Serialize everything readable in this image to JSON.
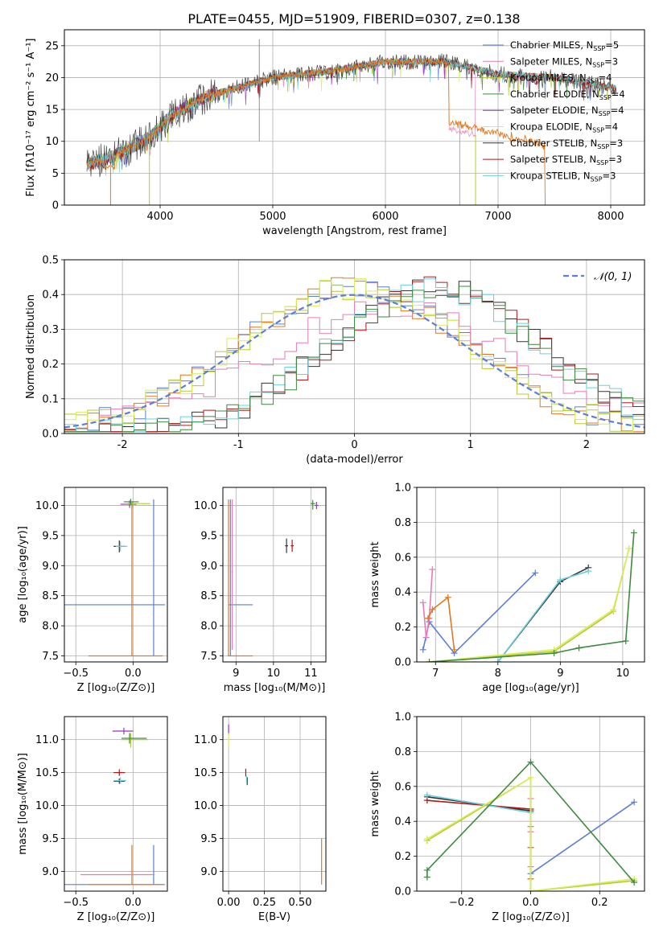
{
  "title": "PLATE=0455, MJD=51909, FIBERID=0307, z=0.138",
  "colors": {
    "Chabrier MILES": "#5b7fd6",
    "Salpeter MILES": "#e67bb8",
    "Kroupa MILES": "#b7c832",
    "Chabrier ELODIE": "#3e8a3e",
    "Salpeter ELODIE": "#9b30c8",
    "Kroupa ELODIE": "#d8ee58",
    "Chabrier STELIB": "#333333",
    "Salpeter STELIB": "#b01818",
    "Kroupa STELIB": "#6cd0dc",
    "orange": "#e07820"
  },
  "chart_data": [
    {
      "id": "spectrum",
      "type": "line",
      "xlabel": "wavelength [Angstrom, rest frame]",
      "ylabel": "Flux [fλ10⁻¹⁷ erg cm⁻² s⁻¹ A⁻¹]",
      "xlim": [
        3150,
        8300
      ],
      "ylim": [
        0,
        27.5
      ],
      "xticks": [
        4000,
        5000,
        6000,
        7000,
        8000
      ],
      "yticks": [
        0,
        5,
        10,
        15,
        20,
        25
      ],
      "legend_position": "top-right",
      "legend": [
        {
          "label": "Chabrier MILES, N",
          "sub": "SSP",
          "n": "=5",
          "color": "#5b7fd6"
        },
        {
          "label": "Salpeter MILES, N",
          "sub": "SSP",
          "n": "=3",
          "color": "#e67bb8"
        },
        {
          "label": "Kroupa MILES, N",
          "sub": "SSP",
          "n": "=4",
          "color": "#b7c832"
        },
        {
          "label": "Chabrier ELODIE, N",
          "sub": "SSP",
          "n": "=4",
          "color": "#3e8a3e"
        },
        {
          "label": "Salpeter ELODIE, N",
          "sub": "SSP",
          "n": "=4",
          "color": "#9b30c8"
        },
        {
          "label": "Kroupa ELODIE, N",
          "sub": "SSP",
          "n": "=4",
          "color": "#d8ee58"
        },
        {
          "label": "Chabrier STELIB, N",
          "sub": "SSP",
          "n": "=3",
          "color": "#333333"
        },
        {
          "label": "Salpeter STELIB, N",
          "sub": "SSP",
          "n": "=3",
          "color": "#b01818"
        },
        {
          "label": "Kroupa STELIB, N",
          "sub": "SSP",
          "n": "=3",
          "color": "#6cd0dc"
        }
      ],
      "continuum": [
        [
          3350,
          6.3
        ],
        [
          3600,
          7.8
        ],
        [
          3900,
          10.5
        ],
        [
          4100,
          14
        ],
        [
          4400,
          17
        ],
        [
          4700,
          18.5
        ],
        [
          5000,
          20
        ],
        [
          5500,
          21
        ],
        [
          6000,
          22.5
        ],
        [
          6400,
          22.5
        ],
        [
          6550,
          22.5
        ],
        [
          7000,
          20.5
        ],
        [
          7500,
          20
        ],
        [
          8000,
          18.5
        ],
        [
          8050,
          18.3
        ]
      ],
      "drops": [
        {
          "start": 6560,
          "end": 7420,
          "levels": [
            [
              6560,
              13
            ],
            [
              6800,
              12.5
            ],
            [
              7000,
              11
            ],
            [
              7200,
              9.5
            ],
            [
              7420,
              0
            ]
          ],
          "color": "#e07820"
        },
        {
          "start": 6560,
          "end": 6800,
          "levels": [
            [
              6560,
              12
            ],
            [
              6800,
              11
            ]
          ],
          "color": "#e67bb8"
        },
        {
          "start": 3600,
          "end": 3600,
          "levels": [
            [
              3500,
              0
            ],
            [
              3600,
              6
            ]
          ],
          "color": "#e07820"
        },
        {
          "start": 3900,
          "end": 3920,
          "levels": [
            [
              3890,
              0
            ],
            [
              3920,
              12
            ]
          ],
          "color": "#b7c832"
        }
      ]
    },
    {
      "id": "residuals",
      "type": "histogram",
      "xlabel": "(data-model)/error",
      "ylabel": "Normed distribution",
      "xlim": [
        -2.5,
        2.5
      ],
      "ylim": [
        0,
        0.5
      ],
      "xticks": [
        -2,
        -1,
        0,
        1,
        2
      ],
      "yticks": [
        0.0,
        0.1,
        0.2,
        0.3,
        0.4,
        0.5
      ],
      "legend_position": "top-right",
      "gauss_label": "𝒩(0, 1)",
      "gauss_color": "#5b7fd6",
      "bin_width": 0.1,
      "bin_start": -2.5,
      "groups": [
        {
          "colors": [
            "#5b7fd6",
            "#e07820",
            "#b7c832",
            "#d8ee58"
          ],
          "center": 0.0,
          "sigma": 1.0,
          "peak": 0.42
        },
        {
          "colors": [
            "#e67bb8"
          ],
          "center": 0.3,
          "sigma": 1.1,
          "peak": 0.36
        },
        {
          "colors": [
            "#333333",
            "#b01818",
            "#6cd0dc",
            "#3e8a3e"
          ],
          "center": 0.7,
          "sigma": 0.9,
          "peak": 0.42
        }
      ]
    },
    {
      "id": "age_vs_Z",
      "type": "errorbar",
      "xlabel": "Z [log₁₀(Z/Z⊙)]",
      "ylabel": "age  [log₁₀(age/yr)]",
      "xlim": [
        -0.6,
        0.3
      ],
      "ylim": [
        7.4,
        10.3
      ],
      "xticks": [
        -0.5,
        0.0
      ],
      "xticklabels": [
        "−0.5",
        "0.0"
      ],
      "yticks": [
        7.5,
        8.0,
        8.5,
        9.0,
        9.5,
        10.0
      ],
      "points": [
        {
          "x": 0.18,
          "y": 8.35,
          "xerr": [
            0.78,
            0.1
          ],
          "yerr": [
            0.85,
            1.75
          ],
          "color": "#5b7fd6"
        },
        {
          "x": -0.01,
          "y": 7.5,
          "xerr": [
            0.38,
            0.27
          ],
          "yerr": [
            0.0,
            2.55
          ],
          "color": "#e07820"
        },
        {
          "x": -0.12,
          "y": 9.32,
          "xerr": [
            0.05,
            0.05
          ],
          "yerr": [
            0.1,
            0.1
          ],
          "color": "#333333"
        },
        {
          "x": -0.11,
          "y": 9.32,
          "xerr": [
            0.04,
            0.06
          ],
          "yerr": [
            0.08,
            0.08
          ],
          "color": "#6cd0dc"
        },
        {
          "x": -0.03,
          "y": 10.02,
          "xerr": [
            0.08,
            0.06
          ],
          "yerr": [
            0.06,
            0.06
          ],
          "color": "#9b30c8"
        },
        {
          "x": 0.0,
          "y": 10.03,
          "xerr": [
            0.05,
            0.15
          ],
          "yerr": [
            0.08,
            0.04
          ],
          "color": "#b7c832"
        },
        {
          "x": -0.02,
          "y": 10.06,
          "xerr": [
            0.06,
            0.07
          ],
          "yerr": [
            0.05,
            0.05
          ],
          "color": "#3e8a3e"
        }
      ]
    },
    {
      "id": "age_vs_mass",
      "type": "errorbar",
      "xlabel": "mass [log₁₀(M/M⊙)]",
      "ylabel": "",
      "xlim": [
        8.65,
        11.4
      ],
      "ylim": [
        7.4,
        10.3
      ],
      "xticks": [
        9,
        10,
        11
      ],
      "yticks": [
        7.5,
        8.0,
        8.5,
        9.0,
        9.5,
        10.0
      ],
      "points": [
        {
          "x": 8.85,
          "y": 8.35,
          "xerr": [
            0.05,
            0.6
          ],
          "yerr": [
            0.85,
            1.75
          ],
          "color": "#5b7fd6"
        },
        {
          "x": 8.8,
          "y": 7.5,
          "xerr": [
            0.02,
            0.65
          ],
          "yerr": [
            0.0,
            2.6
          ],
          "color": "#e07820"
        },
        {
          "x": 8.9,
          "y": 8.9,
          "xerr": [
            0.02,
            0.02
          ],
          "yerr": [
            1.3,
            1.2
          ],
          "color": "#e67bb8"
        },
        {
          "x": 10.35,
          "y": 9.33,
          "xerr": [
            0.04,
            0.04
          ],
          "yerr": [
            0.12,
            0.12
          ],
          "color": "#333333"
        },
        {
          "x": 10.5,
          "y": 9.33,
          "xerr": [
            0.04,
            0.04
          ],
          "yerr": [
            0.1,
            0.1
          ],
          "color": "#b01818"
        },
        {
          "x": 11.15,
          "y": 10.0,
          "xerr": [
            0.05,
            0.05
          ],
          "yerr": [
            0.06,
            0.06
          ],
          "color": "#9b30c8"
        },
        {
          "x": 11.05,
          "y": 10.03,
          "xerr": [
            0.06,
            0.06
          ],
          "yerr": [
            0.1,
            0.06
          ],
          "color": "#3e8a3e"
        }
      ]
    },
    {
      "id": "mass_weight_vs_age",
      "type": "line",
      "xlabel": "age  [log₁₀(age/yr)]",
      "ylabel": "mass weight",
      "xlim": [
        6.7,
        10.35
      ],
      "ylim": [
        0,
        1.0
      ],
      "xticks": [
        7,
        8,
        9,
        10
      ],
      "yticks": [
        0.0,
        0.2,
        0.4,
        0.6,
        0.8,
        1.0
      ],
      "series": [
        {
          "color": "#5b7fd6",
          "x": [
            6.8,
            6.9,
            7.3,
            8.6
          ],
          "y": [
            0.07,
            0.23,
            0.05,
            0.51
          ]
        },
        {
          "color": "#e67bb8",
          "x": [
            6.8,
            6.85,
            6.9,
            6.95
          ],
          "y": [
            0.34,
            0.14,
            0.25,
            0.53
          ]
        },
        {
          "color": "#e07820",
          "x": [
            6.88,
            6.95,
            7.2,
            7.3
          ],
          "y": [
            0.25,
            0.3,
            0.37,
            0.07
          ]
        },
        {
          "color": "#333333",
          "x": [
            8.0,
            9.0,
            9.45
          ],
          "y": [
            0.0,
            0.46,
            0.54
          ]
        },
        {
          "color": "#6cd0dc",
          "x": [
            8.0,
            9.0,
            9.45
          ],
          "y": [
            0.0,
            0.47,
            0.52
          ]
        },
        {
          "color": "#b7c832",
          "x": [
            6.9,
            8.9,
            9.85,
            10.1
          ],
          "y": [
            0.0,
            0.06,
            0.29,
            0.65
          ]
        },
        {
          "color": "#d8ee58",
          "x": [
            6.9,
            8.9,
            9.85,
            10.1
          ],
          "y": [
            0.0,
            0.07,
            0.3,
            0.65
          ]
        },
        {
          "color": "#3e8a3e",
          "x": [
            6.9,
            8.9,
            9.3,
            10.05,
            10.18
          ],
          "y": [
            0.0,
            0.05,
            0.08,
            0.12,
            0.74
          ]
        }
      ]
    },
    {
      "id": "mass_vs_Z",
      "type": "errorbar",
      "xlabel": "Z [log₁₀(Z/Z⊙)]",
      "ylabel": "mass [log₁₀(M/M⊙)]",
      "xlim": [
        -0.6,
        0.3
      ],
      "ylim": [
        8.7,
        11.35
      ],
      "xticks": [
        -0.5,
        0.0
      ],
      "xticklabels": [
        "−0.5",
        "0.0"
      ],
      "yticks": [
        9.0,
        9.5,
        10.0,
        10.5,
        11.0
      ],
      "points": [
        {
          "x": 0.18,
          "y": 8.8,
          "xerr": [
            0.78,
            0.1
          ],
          "yerr": [
            0.0,
            0.6
          ],
          "color": "#5b7fd6"
        },
        {
          "x": -0.01,
          "y": 8.8,
          "xerr": [
            0.38,
            0.27
          ],
          "yerr": [
            0.0,
            0.6
          ],
          "color": "#e07820"
        },
        {
          "x": -0.01,
          "y": 8.95,
          "xerr": [
            0.45,
            0.2
          ],
          "yerr": [
            0.0,
            0.0
          ],
          "color": "#e67bb8"
        },
        {
          "x": -0.12,
          "y": 10.5,
          "xerr": [
            0.05,
            0.05
          ],
          "yerr": [
            0.05,
            0.05
          ],
          "color": "#b01818"
        },
        {
          "x": -0.12,
          "y": 10.37,
          "xerr": [
            0.05,
            0.05
          ],
          "yerr": [
            0.04,
            0.04
          ],
          "color": "#333333"
        },
        {
          "x": -0.11,
          "y": 10.38,
          "xerr": [
            0.05,
            0.05
          ],
          "yerr": [
            0.05,
            0.05
          ],
          "color": "#6cd0dc"
        },
        {
          "x": -0.08,
          "y": 11.13,
          "xerr": [
            0.1,
            0.08
          ],
          "yerr": [
            0.05,
            0.05
          ],
          "color": "#9b30c8"
        },
        {
          "x": -0.02,
          "y": 11.0,
          "xerr": [
            0.08,
            0.15
          ],
          "yerr": [
            0.12,
            0.1
          ],
          "color": "#b7c832"
        },
        {
          "x": -0.03,
          "y": 11.02,
          "xerr": [
            0.07,
            0.15
          ],
          "yerr": [
            0.08,
            0.08
          ],
          "color": "#3e8a3e"
        }
      ]
    },
    {
      "id": "mass_vs_ebv",
      "type": "errorbar",
      "xlabel": "E(B-V)",
      "ylabel": "",
      "xlim": [
        -0.04,
        0.68
      ],
      "ylim": [
        8.7,
        11.35
      ],
      "xticks": [
        0.0,
        0.25,
        0.5
      ],
      "xticklabels": [
        "0.00",
        "0.25",
        "0.50"
      ],
      "yticks": [
        9.0,
        9.5,
        10.0,
        10.5,
        11.0
      ],
      "points": [
        {
          "x": 0.0,
          "y": 11.15,
          "xerr": [
            0.0,
            0.0
          ],
          "yerr": [
            0.08,
            0.08
          ],
          "color": "#9b30c8"
        },
        {
          "x": 0.0,
          "y": 11.0,
          "xerr": [
            0.0,
            0.0
          ],
          "yerr": [
            0.12,
            0.1
          ],
          "color": "#d8ee58"
        },
        {
          "x": 0.12,
          "y": 10.5,
          "xerr": [
            0.0,
            0.0
          ],
          "yerr": [
            0.06,
            0.06
          ],
          "color": "#b01818"
        },
        {
          "x": 0.13,
          "y": 10.37,
          "xerr": [
            0.0,
            0.0
          ],
          "yerr": [
            0.06,
            0.06
          ],
          "color": "#333333"
        },
        {
          "x": 0.125,
          "y": 10.4,
          "xerr": [
            0.0,
            0.0
          ],
          "yerr": [
            0.05,
            0.05
          ],
          "color": "#6cd0dc"
        },
        {
          "x": 0.65,
          "y": 9.15,
          "xerr": [
            0.0,
            0.0
          ],
          "yerr": [
            0.35,
            0.35
          ],
          "color": "#e07820"
        }
      ]
    },
    {
      "id": "mass_weight_vs_Z",
      "type": "line",
      "xlabel": "Z [log₁₀(Z/Z⊙)]",
      "ylabel": "mass weight",
      "xlim": [
        -0.33,
        0.33
      ],
      "ylim": [
        0,
        1.0
      ],
      "xticks": [
        -0.2,
        0.0,
        0.2
      ],
      "xticklabels": [
        "−0.2",
        "0.0",
        "0.2"
      ],
      "yticks": [
        0.0,
        0.2,
        0.4,
        0.6,
        0.8,
        1.0
      ],
      "series": [
        {
          "color": "#5b7fd6",
          "x": [
            0.0,
            0.0,
            0.3
          ],
          "y": [
            0.07,
            0.1,
            0.51
          ]
        },
        {
          "color": "#e67bb8",
          "x": [
            0.0,
            0.0,
            0.0,
            0.0
          ],
          "y": [
            0.14,
            0.25,
            0.34,
            0.53
          ]
        },
        {
          "color": "#e07820",
          "x": [
            0.0,
            0.0,
            0.0
          ],
          "y": [
            0.07,
            0.25,
            0.37
          ]
        },
        {
          "color": "#333333",
          "x": [
            -0.3,
            0.0
          ],
          "y": [
            0.54,
            0.46
          ]
        },
        {
          "color": "#b01818",
          "x": [
            -0.3,
            0.0
          ],
          "y": [
            0.52,
            0.47
          ]
        },
        {
          "color": "#6cd0dc",
          "x": [
            -0.3,
            0.0
          ],
          "y": [
            0.55,
            0.45
          ]
        },
        {
          "color": "#b7c832",
          "x": [
            -0.3,
            0.0,
            0.0,
            0.3
          ],
          "y": [
            0.29,
            0.65,
            0.0,
            0.06
          ]
        },
        {
          "color": "#d8ee58",
          "x": [
            -0.3,
            0.0,
            0.0,
            0.3
          ],
          "y": [
            0.3,
            0.65,
            0.0,
            0.07
          ]
        },
        {
          "color": "#3e8a3e",
          "x": [
            -0.3,
            -0.3,
            0.0,
            0.3
          ],
          "y": [
            0.08,
            0.12,
            0.74,
            0.05
          ]
        }
      ]
    }
  ]
}
